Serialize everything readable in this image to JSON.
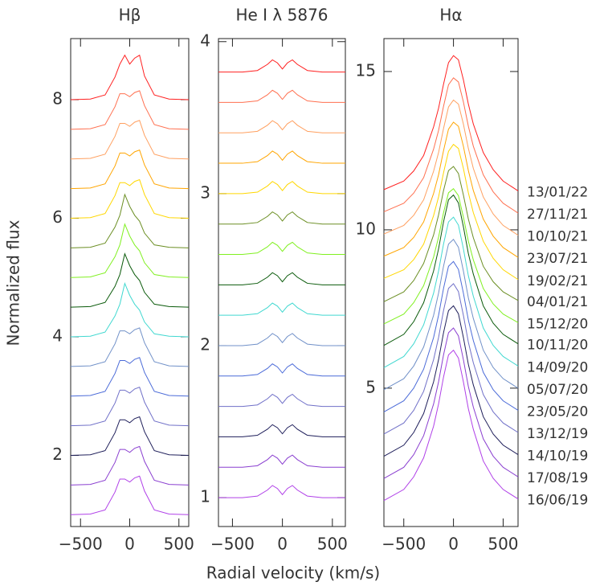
{
  "chart_data": [
    {
      "type": "line",
      "title": "Hβ",
      "ylabel": "Normalized flux",
      "xlim": [
        -600,
        600
      ],
      "ylim": [
        0.8,
        9.03
      ],
      "xticks": [
        {
          "value": -500,
          "label": "−500"
        },
        0,
        500
      ],
      "yticks": [
        2,
        4,
        6,
        8
      ],
      "x": [
        -600,
        -400,
        -250,
        -150,
        -100,
        -50,
        0,
        50,
        100,
        150,
        250,
        400,
        600
      ],
      "series": [
        {
          "color": "#b040e8",
          "values": [
            1,
            1.01,
            1.08,
            1.38,
            1.6,
            1.6,
            1.55,
            1.62,
            1.65,
            1.4,
            1.08,
            1.01,
            1
          ]
        },
        {
          "color": "#8a3fd0",
          "values": [
            1.5,
            1.51,
            1.58,
            1.88,
            2.1,
            2.1,
            2.05,
            2.12,
            2.15,
            1.9,
            1.58,
            1.51,
            1.5
          ]
        },
        {
          "color": "#1e1e5a",
          "values": [
            2,
            2.01,
            2.08,
            2.38,
            2.6,
            2.6,
            2.55,
            2.62,
            2.65,
            2.4,
            2.08,
            2.01,
            2
          ]
        },
        {
          "color": "#7070c8",
          "values": [
            2.5,
            2.51,
            2.58,
            2.88,
            3.1,
            3.1,
            3.05,
            3.12,
            3.15,
            2.9,
            2.58,
            2.51,
            2.5
          ]
        },
        {
          "color": "#4a6ad8",
          "values": [
            3,
            3.01,
            3.08,
            3.38,
            3.6,
            3.6,
            3.55,
            3.62,
            3.65,
            3.4,
            3.08,
            3.01,
            3
          ]
        },
        {
          "color": "#7090c8",
          "values": [
            3.5,
            3.51,
            3.58,
            3.88,
            4.1,
            4.1,
            4.05,
            4.12,
            4.15,
            3.9,
            3.58,
            3.51,
            3.5
          ]
        },
        {
          "color": "#40d8d0",
          "values": [
            4,
            4.01,
            4.08,
            4.35,
            4.55,
            4.9,
            4.7,
            4.55,
            4.45,
            4.25,
            4.05,
            4.01,
            4
          ]
        },
        {
          "color": "#0a5a0a",
          "values": [
            4.5,
            4.51,
            4.58,
            4.85,
            5.05,
            5.4,
            5.2,
            5.05,
            4.95,
            4.75,
            4.55,
            4.51,
            4.5
          ]
        },
        {
          "color": "#80f020",
          "values": [
            5,
            5.01,
            5.08,
            5.35,
            5.55,
            5.9,
            5.7,
            5.55,
            5.45,
            5.25,
            5.05,
            5.01,
            5
          ]
        },
        {
          "color": "#6b8e23",
          "values": [
            5.5,
            5.51,
            5.58,
            5.85,
            6.05,
            6.4,
            6.2,
            6.05,
            5.95,
            5.75,
            5.55,
            5.51,
            5.5
          ]
        },
        {
          "color": "#ffd700",
          "values": [
            6,
            6.01,
            6.08,
            6.38,
            6.6,
            6.6,
            6.55,
            6.62,
            6.65,
            6.4,
            6.08,
            6.01,
            6
          ]
        },
        {
          "color": "#ffa500",
          "values": [
            6.5,
            6.51,
            6.58,
            6.88,
            7.1,
            7.1,
            7.05,
            7.12,
            7.15,
            6.9,
            6.58,
            6.51,
            6.5
          ]
        },
        {
          "color": "#ffa060",
          "values": [
            7,
            7.01,
            7.08,
            7.38,
            7.6,
            7.6,
            7.55,
            7.62,
            7.65,
            7.4,
            7.08,
            7.01,
            7
          ]
        },
        {
          "color": "#ff7050",
          "values": [
            7.5,
            7.51,
            7.58,
            7.88,
            8.1,
            8.1,
            8.05,
            8.12,
            8.15,
            7.9,
            7.58,
            7.51,
            7.5
          ]
        },
        {
          "color": "#ff2020",
          "values": [
            8,
            8.01,
            8.08,
            8.38,
            8.6,
            8.75,
            8.6,
            8.7,
            8.75,
            8.4,
            8.08,
            8.01,
            8
          ]
        }
      ]
    },
    {
      "type": "line",
      "title": "He I λ 5876",
      "xlabel": "Radial velocity (km/s)",
      "xlim": [
        -640,
        630
      ],
      "ylim": [
        0.81,
        4.02
      ],
      "xticks": [
        {
          "value": -500,
          "label": "−500"
        },
        0,
        500
      ],
      "yticks": [
        1,
        2,
        3,
        4
      ],
      "x": [
        -640,
        -400,
        -250,
        -150,
        -100,
        -50,
        0,
        50,
        100,
        150,
        250,
        400,
        630
      ],
      "series": [
        {
          "color": "#b040e8",
          "values": [
            1,
            1,
            1.01,
            1.05,
            1.08,
            1.06,
            1.02,
            1.06,
            1.08,
            1.05,
            1.01,
            1,
            1
          ]
        },
        {
          "color": "#8a3fd0",
          "values": [
            1.2,
            1.2,
            1.21,
            1.25,
            1.28,
            1.26,
            1.22,
            1.26,
            1.28,
            1.25,
            1.21,
            1.2,
            1.2
          ]
        },
        {
          "color": "#1e1e5a",
          "values": [
            1.4,
            1.4,
            1.41,
            1.45,
            1.48,
            1.46,
            1.42,
            1.46,
            1.48,
            1.45,
            1.41,
            1.4,
            1.4
          ]
        },
        {
          "color": "#7070c8",
          "values": [
            1.6,
            1.6,
            1.61,
            1.65,
            1.68,
            1.66,
            1.62,
            1.66,
            1.68,
            1.65,
            1.61,
            1.6,
            1.6
          ]
        },
        {
          "color": "#4a6ad8",
          "values": [
            1.8,
            1.8,
            1.81,
            1.85,
            1.88,
            1.86,
            1.82,
            1.86,
            1.88,
            1.85,
            1.81,
            1.8,
            1.8
          ]
        },
        {
          "color": "#7090c8",
          "values": [
            2,
            2,
            2.01,
            2.05,
            2.08,
            2.06,
            2.02,
            2.06,
            2.08,
            2.05,
            2.01,
            2,
            2
          ]
        },
        {
          "color": "#40d8d0",
          "values": [
            2.2,
            2.2,
            2.21,
            2.25,
            2.28,
            2.26,
            2.22,
            2.26,
            2.28,
            2.25,
            2.21,
            2.2,
            2.2
          ]
        },
        {
          "color": "#0a5a0a",
          "values": [
            2.4,
            2.4,
            2.41,
            2.45,
            2.48,
            2.46,
            2.42,
            2.46,
            2.48,
            2.45,
            2.41,
            2.4,
            2.4
          ]
        },
        {
          "color": "#80f020",
          "values": [
            2.6,
            2.6,
            2.61,
            2.65,
            2.68,
            2.66,
            2.62,
            2.66,
            2.68,
            2.65,
            2.61,
            2.6,
            2.6
          ]
        },
        {
          "color": "#6b8e23",
          "values": [
            2.8,
            2.8,
            2.81,
            2.85,
            2.88,
            2.86,
            2.82,
            2.86,
            2.88,
            2.85,
            2.81,
            2.8,
            2.8
          ]
        },
        {
          "color": "#ffd700",
          "values": [
            3,
            3,
            3.01,
            3.05,
            3.08,
            3.06,
            3.02,
            3.06,
            3.08,
            3.05,
            3.01,
            3,
            3
          ]
        },
        {
          "color": "#ffa500",
          "values": [
            3.2,
            3.2,
            3.21,
            3.25,
            3.28,
            3.26,
            3.22,
            3.26,
            3.28,
            3.25,
            3.21,
            3.2,
            3.2
          ]
        },
        {
          "color": "#ffa060",
          "values": [
            3.4,
            3.4,
            3.41,
            3.45,
            3.48,
            3.46,
            3.42,
            3.46,
            3.48,
            3.45,
            3.41,
            3.4,
            3.4
          ]
        },
        {
          "color": "#ff7050",
          "values": [
            3.6,
            3.6,
            3.61,
            3.65,
            3.68,
            3.66,
            3.62,
            3.66,
            3.68,
            3.65,
            3.61,
            3.6,
            3.6
          ]
        },
        {
          "color": "#ff2020",
          "values": [
            3.8,
            3.8,
            3.81,
            3.85,
            3.88,
            3.86,
            3.82,
            3.86,
            3.88,
            3.85,
            3.81,
            3.8,
            3.8
          ]
        }
      ]
    },
    {
      "type": "line",
      "title": "Hα",
      "xlim": [
        -700,
        650
      ],
      "ylim": [
        0.63,
        16.04
      ],
      "xticks": [
        {
          "value": -500,
          "label": "−500"
        },
        0,
        500
      ],
      "yticks": [
        5,
        10,
        15
      ],
      "x": [
        -700,
        -500,
        -400,
        -300,
        -200,
        -150,
        -100,
        -50,
        0,
        50,
        100,
        150,
        200,
        300,
        400,
        500,
        650
      ],
      "series": [
        {
          "name": "16/06/19",
          "color": "#b040e8",
          "values": [
            1.45,
            1.8,
            2.2,
            2.8,
            3.8,
            4.5,
            5.35,
            6.05,
            6.2,
            5.95,
            5.2,
            4.35,
            3.7,
            2.7,
            2.15,
            1.8,
            1.5
          ]
        },
        {
          "name": "17/08/19",
          "color": "#8a3fd0",
          "values": [
            2.15,
            2.5,
            2.9,
            3.5,
            4.5,
            5.2,
            6.05,
            6.75,
            6.9,
            6.65,
            5.9,
            5.05,
            4.4,
            3.4,
            2.85,
            2.5,
            2.2
          ]
        },
        {
          "name": "14/10/19",
          "color": "#1e1e5a",
          "values": [
            2.85,
            3.2,
            3.6,
            4.2,
            5.2,
            5.9,
            6.75,
            7.45,
            7.6,
            7.35,
            6.6,
            5.75,
            5.1,
            4.1,
            3.55,
            3.2,
            2.9
          ]
        },
        {
          "name": "13/12/19",
          "color": "#7070c8",
          "values": [
            3.55,
            3.9,
            4.3,
            4.9,
            5.9,
            6.6,
            7.45,
            8.15,
            8.3,
            8.05,
            7.3,
            6.45,
            5.8,
            4.8,
            4.25,
            3.9,
            3.6
          ]
        },
        {
          "name": "23/05/20",
          "color": "#4a6ad8",
          "values": [
            4.25,
            4.6,
            5.0,
            5.6,
            6.6,
            7.3,
            8.15,
            8.85,
            9.0,
            8.75,
            8.0,
            7.15,
            6.5,
            5.5,
            4.95,
            4.6,
            4.3
          ]
        },
        {
          "name": "05/07/20",
          "color": "#7090c8",
          "values": [
            4.95,
            5.3,
            5.7,
            6.3,
            7.3,
            8.0,
            8.85,
            9.55,
            9.7,
            9.45,
            8.7,
            7.85,
            7.2,
            6.2,
            5.65,
            5.3,
            5.0
          ]
        },
        {
          "name": "14/09/20",
          "color": "#40d8d0",
          "values": [
            5.65,
            6.0,
            6.4,
            7.0,
            8.0,
            8.7,
            9.55,
            10.25,
            10.4,
            10.15,
            9.4,
            8.55,
            7.9,
            6.9,
            6.35,
            6.0,
            5.7
          ]
        },
        {
          "name": "10/11/20",
          "color": "#0a5a0a",
          "values": [
            6.35,
            6.7,
            7.1,
            7.7,
            8.7,
            9.4,
            10.25,
            10.95,
            11.1,
            10.85,
            10.1,
            9.25,
            8.6,
            7.6,
            7.05,
            6.7,
            6.4
          ]
        },
        {
          "name": "15/12/20",
          "color": "#80f020",
          "values": [
            7.03,
            7.34,
            7.7,
            8.24,
            9.14,
            9.77,
            10.54,
            11.17,
            11.3,
            11.08,
            10.4,
            9.64,
            9.05,
            8.15,
            7.66,
            7.34,
            7.07
          ]
        },
        {
          "name": "04/01/21",
          "color": "#6b8e23",
          "values": [
            7.73,
            8.04,
            8.4,
            8.94,
            9.84,
            10.47,
            11.24,
            11.87,
            12.0,
            11.78,
            11.1,
            10.34,
            9.75,
            8.85,
            8.36,
            8.04,
            7.77
          ]
        },
        {
          "name": "19/02/21",
          "color": "#ffd700",
          "values": [
            8.47,
            8.74,
            9.06,
            9.55,
            10.45,
            11.04,
            11.8,
            12.48,
            12.7,
            12.57,
            11.94,
            11.17,
            10.54,
            9.64,
            9.1,
            8.74,
            8.43
          ]
        },
        {
          "name": "23/07/21",
          "color": "#ffa500",
          "values": [
            9.17,
            9.44,
            9.76,
            10.25,
            11.15,
            11.74,
            12.5,
            13.18,
            13.4,
            13.27,
            12.64,
            11.87,
            11.24,
            10.34,
            9.8,
            9.44,
            9.13
          ]
        },
        {
          "name": "10/10/21",
          "color": "#ffa060",
          "values": [
            9.87,
            10.14,
            10.46,
            10.95,
            11.85,
            12.44,
            13.2,
            13.88,
            14.1,
            13.97,
            13.34,
            12.57,
            11.94,
            11.04,
            10.5,
            10.14,
            9.83
          ]
        },
        {
          "name": "27/11/21",
          "color": "#ff7050",
          "values": [
            10.57,
            10.84,
            11.16,
            11.65,
            12.55,
            13.14,
            13.9,
            14.58,
            14.8,
            14.67,
            14.04,
            13.27,
            12.64,
            11.74,
            11.2,
            10.84,
            10.53
          ]
        },
        {
          "name": "13/01/22",
          "color": "#ff2020",
          "values": [
            11.27,
            11.54,
            11.86,
            12.35,
            13.25,
            13.84,
            14.6,
            15.28,
            15.5,
            15.37,
            14.74,
            13.97,
            13.34,
            12.44,
            11.9,
            11.54,
            11.23
          ]
        }
      ]
    }
  ]
}
